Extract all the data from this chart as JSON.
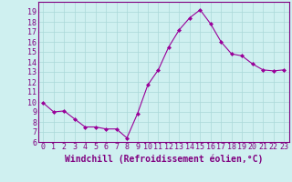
{
  "x": [
    0,
    1,
    2,
    3,
    4,
    5,
    6,
    7,
    8,
    9,
    10,
    11,
    12,
    13,
    14,
    15,
    16,
    17,
    18,
    19,
    20,
    21,
    22,
    23
  ],
  "y": [
    9.9,
    9.0,
    9.1,
    8.3,
    7.5,
    7.5,
    7.3,
    7.3,
    6.4,
    8.8,
    11.7,
    13.2,
    15.5,
    17.2,
    18.4,
    19.2,
    17.8,
    16.0,
    14.8,
    14.6,
    13.8,
    13.2,
    13.1,
    13.2
  ],
  "line_color": "#990099",
  "marker": "D",
  "marker_size": 2,
  "bg_color": "#cff0f0",
  "grid_color": "#aad8d8",
  "xlabel": "Windchill (Refroidissement éolien,°C)",
  "ylim": [
    6,
    20
  ],
  "xlim": [
    -0.5,
    23.5
  ],
  "yticks": [
    6,
    7,
    8,
    9,
    10,
    11,
    12,
    13,
    14,
    15,
    16,
    17,
    18,
    19
  ],
  "xticks": [
    0,
    1,
    2,
    3,
    4,
    5,
    6,
    7,
    8,
    9,
    10,
    11,
    12,
    13,
    14,
    15,
    16,
    17,
    18,
    19,
    20,
    21,
    22,
    23
  ],
  "tick_label_size": 6,
  "xlabel_size": 7,
  "label_color": "#800080",
  "spine_color": "#800080"
}
